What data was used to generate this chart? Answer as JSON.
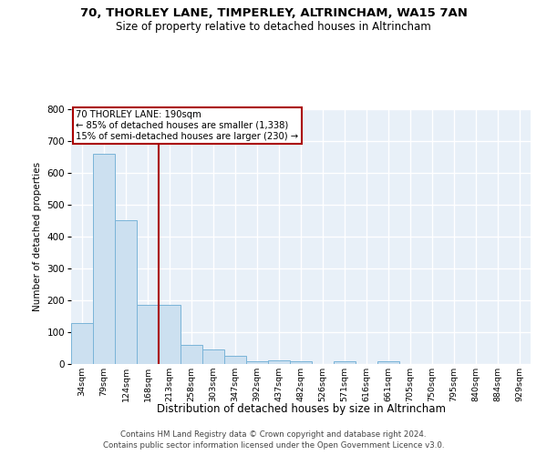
{
  "title": "70, THORLEY LANE, TIMPERLEY, ALTRINCHAM, WA15 7AN",
  "subtitle": "Size of property relative to detached houses in Altrincham",
  "xlabel": "Distribution of detached houses by size in Altrincham",
  "ylabel": "Number of detached properties",
  "footnote1": "Contains HM Land Registry data © Crown copyright and database right 2024.",
  "footnote2": "Contains public sector information licensed under the Open Government Licence v3.0.",
  "bin_labels": [
    "34sqm",
    "79sqm",
    "124sqm",
    "168sqm",
    "213sqm",
    "258sqm",
    "303sqm",
    "347sqm",
    "392sqm",
    "437sqm",
    "482sqm",
    "526sqm",
    "571sqm",
    "616sqm",
    "661sqm",
    "705sqm",
    "750sqm",
    "795sqm",
    "840sqm",
    "884sqm",
    "929sqm"
  ],
  "bar_values": [
    128,
    660,
    450,
    185,
    185,
    60,
    45,
    25,
    10,
    12,
    8,
    0,
    8,
    0,
    8,
    0,
    0,
    0,
    0,
    0,
    0
  ],
  "bar_color": "#cce0f0",
  "bar_edgecolor": "#7ab4d8",
  "background_color": "#e8f0f8",
  "grid_color": "#ffffff",
  "vline_x": 3.5,
  "vline_color": "#aa0000",
  "annotation_line1": "70 THORLEY LANE: 190sqm",
  "annotation_line2": "← 85% of detached houses are smaller (1,338)",
  "annotation_line3": "15% of semi-detached houses are larger (230) →",
  "annotation_box_facecolor": "#ffffff",
  "annotation_box_edgecolor": "#aa0000",
  "ylim": [
    0,
    800
  ],
  "yticks": [
    0,
    100,
    200,
    300,
    400,
    500,
    600,
    700,
    800
  ],
  "title_fontsize": 9.5,
  "subtitle_fontsize": 8.5
}
